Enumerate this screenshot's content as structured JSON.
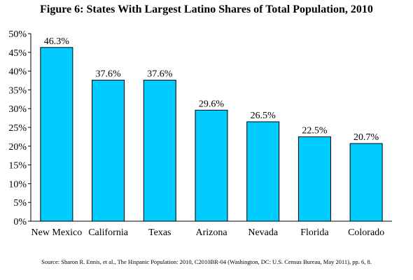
{
  "chart_data": {
    "type": "bar",
    "title": "Figure 6: States With Largest Latino Shares of Total Population, 2010",
    "categories": [
      "New Mexico",
      "California",
      "Texas",
      "Arizona",
      "Nevada",
      "Florida",
      "Colorado"
    ],
    "values": [
      46.3,
      37.6,
      37.6,
      29.6,
      26.5,
      22.5,
      20.7
    ],
    "data_labels": [
      "46.3%",
      "37.6%",
      "37.6%",
      "29.6%",
      "26.5%",
      "22.5%",
      "20.7%"
    ],
    "y_ticks": [
      "0%",
      "5%",
      "10%",
      "15%",
      "20%",
      "25%",
      "30%",
      "35%",
      "40%",
      "45%",
      "50%"
    ],
    "ylim": [
      0,
      50
    ],
    "grid": false,
    "legend": "none",
    "bar_color": "#00ccff",
    "source": "Source: Sharon R. Ennis, et al., The Hispanic Population: 2010, C2010BR-04 (Washington, DC: U.S. Census Bureau, May 2011), pp. 6, 8."
  }
}
